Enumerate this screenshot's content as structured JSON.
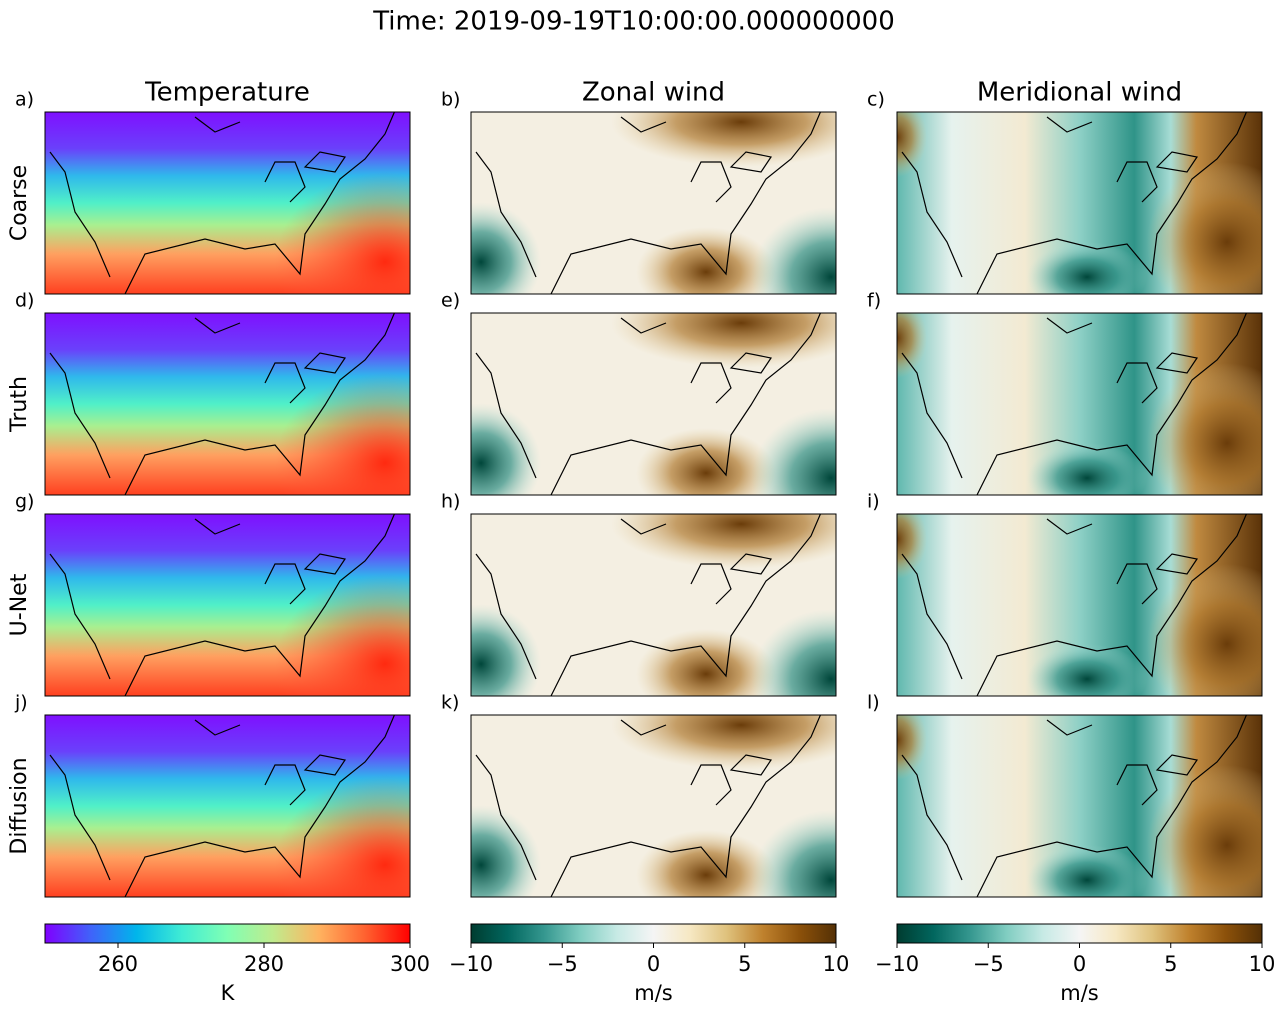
{
  "chart_data": {
    "type": "map-grid",
    "title": "Time: 2019-09-19T10:00:00.000000000",
    "columns": [
      "Temperature",
      "Zonal wind",
      "Meridional wind"
    ],
    "rows": [
      "Coarse",
      "Truth",
      "U-Net",
      "Diffusion"
    ],
    "panel_labels": [
      [
        "a)",
        "b)",
        "c)"
      ],
      [
        "d)",
        "e)",
        "f)"
      ],
      [
        "g)",
        "h)",
        "i)"
      ],
      [
        "j)",
        "k)",
        "l)"
      ]
    ],
    "colorbars": [
      {
        "label": "K",
        "colormap": "rainbow",
        "xlim": [
          250,
          300
        ],
        "xticks": [
          260,
          280,
          300
        ]
      },
      {
        "label": "m/s",
        "colormap": "BrBG_r",
        "xlim": [
          -10,
          10
        ],
        "xticks": [
          {
            "value": -10,
            "label": "−10"
          },
          {
            "value": -5,
            "label": "−5"
          },
          0,
          5,
          10
        ]
      },
      {
        "label": "m/s",
        "colormap": "BrBG_r",
        "xlim": [
          -10,
          10
        ],
        "xticks": [
          {
            "value": -10,
            "label": "−10"
          },
          {
            "value": -5,
            "label": "−5"
          },
          0,
          5,
          10
        ]
      }
    ]
  }
}
